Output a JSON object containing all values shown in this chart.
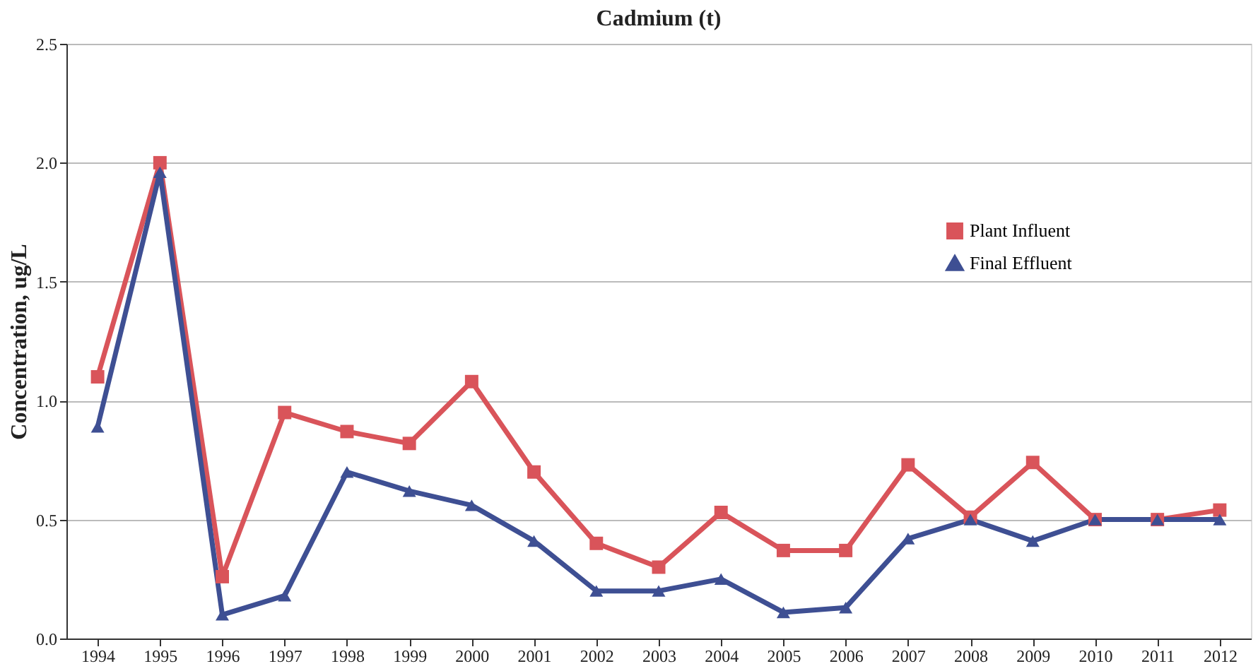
{
  "chart_data": {
    "type": "line",
    "title": "Cadmium (t)",
    "ylabel": "Concentration, ug/L",
    "categories": [
      "1994",
      "1995",
      "1996",
      "1997",
      "1998",
      "1999",
      "2000",
      "2001",
      "2002",
      "2003",
      "2004",
      "2005",
      "2006",
      "2007",
      "2008",
      "2009",
      "2010",
      "2011",
      "2012"
    ],
    "series": [
      {
        "name": "Plant Influent",
        "color": "#d9545a",
        "marker": "square",
        "values": [
          1.1,
          2.0,
          0.26,
          0.95,
          0.87,
          0.82,
          1.08,
          0.7,
          0.4,
          0.3,
          0.53,
          0.37,
          0.37,
          0.73,
          0.51,
          0.74,
          0.5,
          0.5,
          0.54
        ]
      },
      {
        "name": "Final Effluent",
        "color": "#3e4f93",
        "marker": "triangle",
        "values": [
          0.89,
          1.96,
          0.1,
          0.18,
          0.7,
          0.62,
          0.56,
          0.41,
          0.2,
          0.2,
          0.25,
          0.11,
          0.13,
          0.42,
          0.5,
          0.41,
          0.5,
          0.5,
          0.5
        ]
      }
    ],
    "ylim": [
      0,
      2.5
    ],
    "yticks": [
      {
        "value": 0,
        "label": "0.0"
      },
      0.5,
      {
        "value": 1,
        "label": "1.0"
      },
      1.5,
      {
        "value": 2,
        "label": "2.0"
      },
      2.5
    ],
    "grid": "y",
    "legend": "top right"
  }
}
